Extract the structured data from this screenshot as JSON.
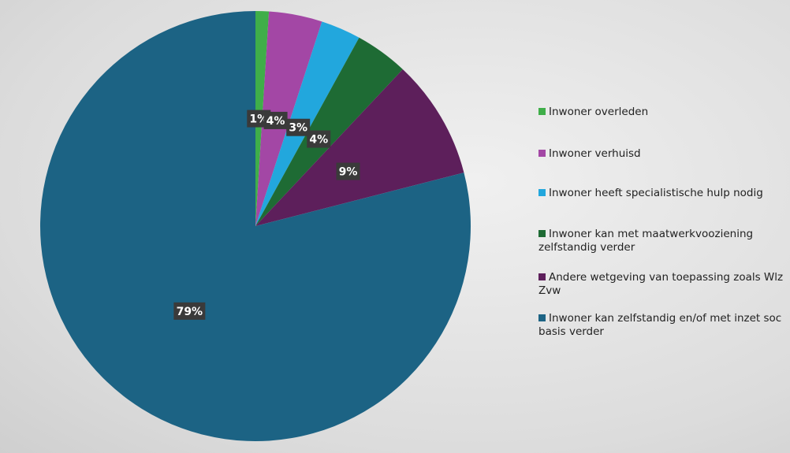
{
  "chart_data": {
    "type": "pie",
    "categories": [
      "Inwoner overleden",
      "Inwoner verhuisd",
      "Inwoner heeft specialistische hulp nodig",
      "Inwoner kan met maatwerkvooziening zelfstandig verder",
      "Andere wetgeving van toepassing zoals Wlz Zvw",
      "Inwoner kan zelfstandig en/of met inzet soc basis verder"
    ],
    "values": [
      1,
      4,
      3,
      4,
      9,
      79
    ],
    "value_labels": [
      "1%",
      "4%",
      "3%",
      "4%",
      "9%",
      "79%"
    ],
    "colors": [
      "#3fae49",
      "#a347a5",
      "#22a7dd",
      "#1e6b34",
      "#5d1f5b",
      "#1c6384"
    ],
    "legend": "right"
  }
}
